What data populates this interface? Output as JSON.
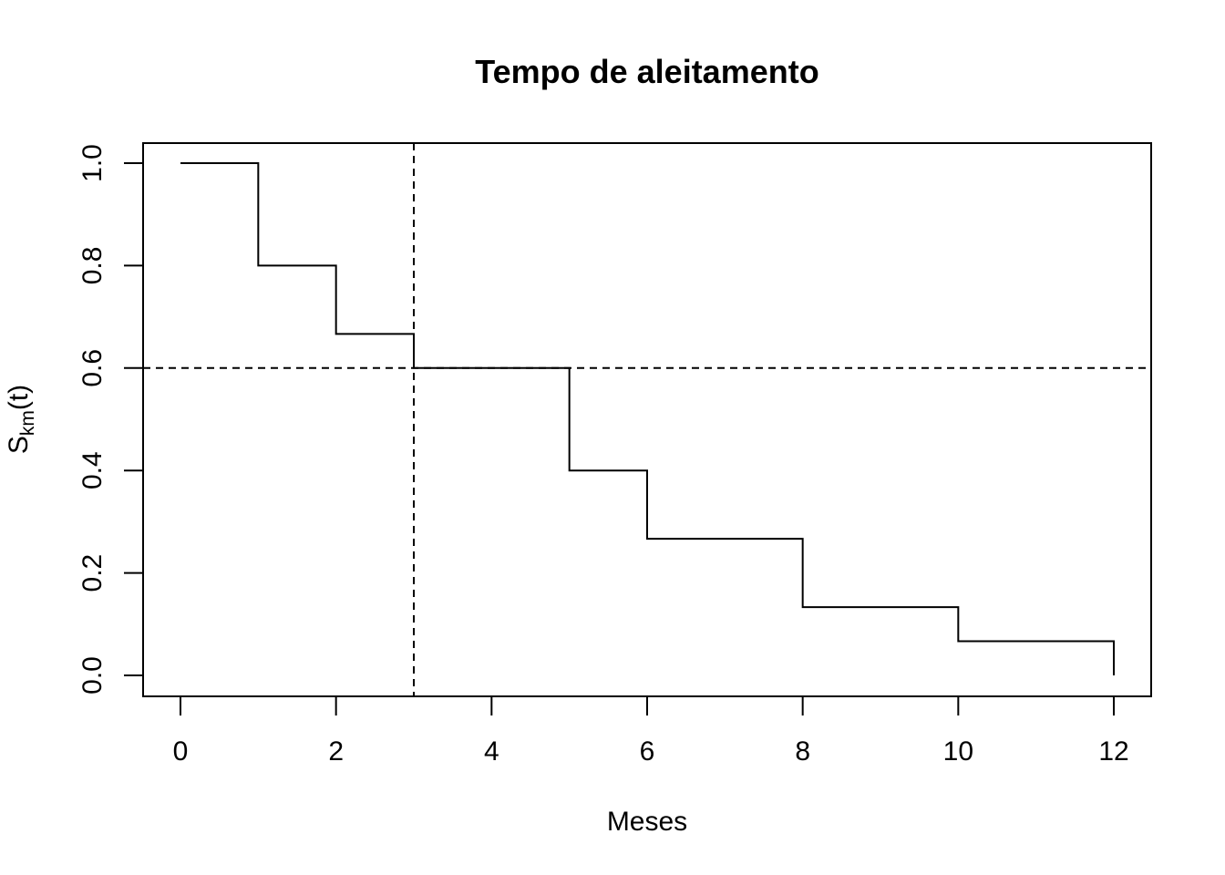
{
  "chart_data": {
    "type": "line",
    "title": "Tempo de aleitamento",
    "xlabel": "Meses",
    "ylabel": {
      "base": "S",
      "subscript": "km",
      "suffix": "(t)"
    },
    "xlim": [
      0,
      12
    ],
    "ylim": [
      0,
      1
    ],
    "x_ticks": [
      0,
      2,
      4,
      6,
      8,
      10,
      12
    ],
    "x_tick_labels": [
      "0",
      "2",
      "4",
      "6",
      "8",
      "10",
      "12"
    ],
    "y_ticks": [
      0,
      0.2,
      0.4,
      0.6,
      0.8,
      1.0
    ],
    "y_tick_labels": [
      "0.0",
      "0.2",
      "0.4",
      "0.6",
      "0.8",
      "1.0"
    ],
    "grid": false,
    "series": [
      {
        "step": "post",
        "color": "#000000",
        "x": [
          0,
          1,
          2,
          3,
          5,
          6,
          8,
          10,
          12
        ],
        "y": [
          1.0,
          0.8,
          0.6667,
          0.6,
          0.4,
          0.2667,
          0.1333,
          0.0667,
          0.0
        ]
      }
    ],
    "reference_lines": [
      {
        "orientation": "horizontal",
        "value": 0.6,
        "style": "dashed"
      },
      {
        "orientation": "vertical",
        "value": 3,
        "style": "dashed"
      }
    ]
  }
}
